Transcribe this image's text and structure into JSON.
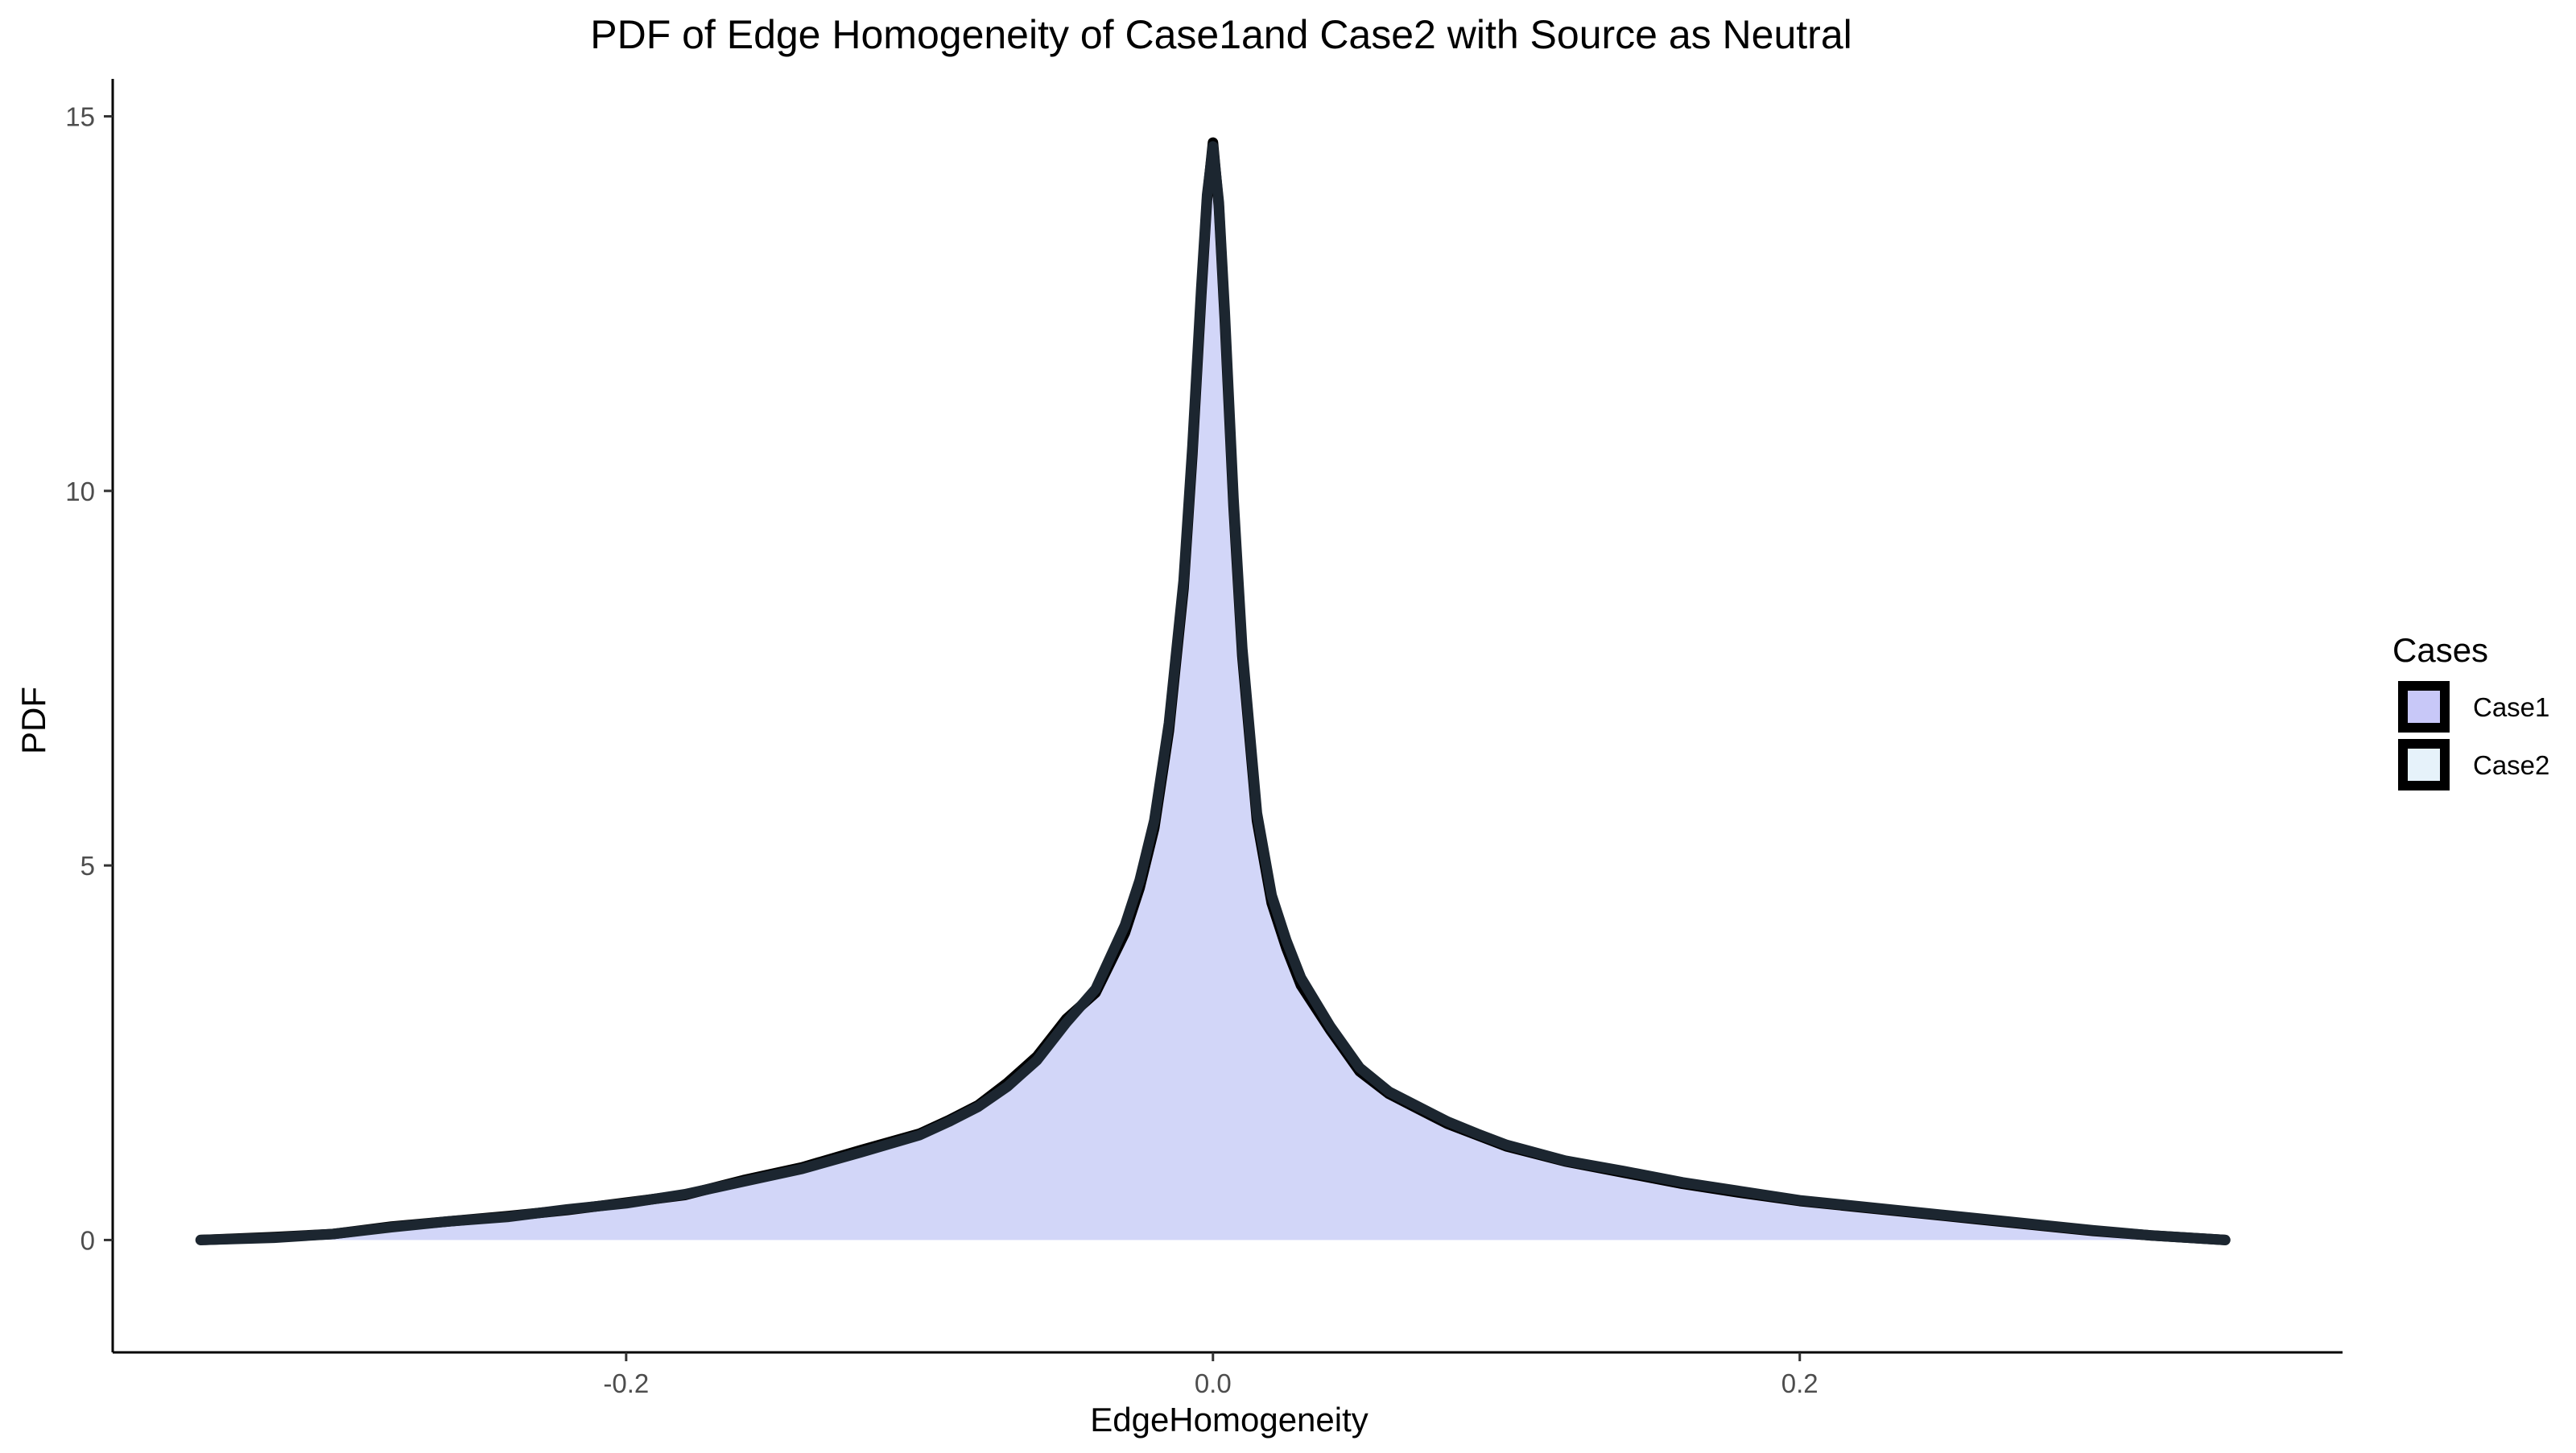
{
  "chart_data": {
    "type": "area",
    "title": "PDF of Edge Homogeneity of Case1and Case2 with Source as Neutral",
    "xlabel": "EdgeHomogeneity",
    "ylabel": "PDF",
    "xlim": [
      -0.375,
      0.385
    ],
    "ylim": [
      -1.5,
      15.5
    ],
    "xticks": [
      {
        "value": -0.2,
        "label": "-0.2"
      },
      {
        "value": 0.0,
        "label": "0.0"
      },
      {
        "value": 0.2,
        "label": "0.2"
      }
    ],
    "yticks": [
      {
        "value": 0,
        "label": "0"
      },
      {
        "value": 5,
        "label": "5"
      },
      {
        "value": 10,
        "label": "10"
      },
      {
        "value": 15,
        "label": "15"
      }
    ],
    "grid": false,
    "legend": {
      "title": "Cases",
      "placement": "right",
      "items": [
        {
          "label": "Case1",
          "color": "#c8c8f8"
        },
        {
          "label": "Case2",
          "color": "#e6f2fa"
        }
      ]
    },
    "series": [
      {
        "name": "Case1",
        "fill": "#c8c8f8",
        "x": [
          -0.345,
          -0.32,
          -0.3,
          -0.28,
          -0.26,
          -0.24,
          -0.22,
          -0.2,
          -0.18,
          -0.16,
          -0.14,
          -0.12,
          -0.1,
          -0.09,
          -0.08,
          -0.07,
          -0.06,
          -0.05,
          -0.04,
          -0.03,
          -0.025,
          -0.02,
          -0.015,
          -0.01,
          -0.007,
          -0.004,
          -0.002,
          0.0,
          0.002,
          0.004,
          0.007,
          0.01,
          0.015,
          0.02,
          0.025,
          0.03,
          0.04,
          0.05,
          0.06,
          0.07,
          0.08,
          0.09,
          0.1,
          0.12,
          0.14,
          0.16,
          0.18,
          0.2,
          0.22,
          0.24,
          0.26,
          0.28,
          0.3,
          0.32,
          0.345
        ],
        "y": [
          0.0,
          0.04,
          0.08,
          0.18,
          0.25,
          0.32,
          0.4,
          0.5,
          0.6,
          0.8,
          0.97,
          1.2,
          1.42,
          1.6,
          1.8,
          2.1,
          2.45,
          2.95,
          3.3,
          4.1,
          4.7,
          5.5,
          6.8,
          8.7,
          10.5,
          12.6,
          13.9,
          14.65,
          13.8,
          12.3,
          9.8,
          7.8,
          5.6,
          4.5,
          3.9,
          3.4,
          2.8,
          2.25,
          1.95,
          1.75,
          1.55,
          1.4,
          1.25,
          1.05,
          0.9,
          0.75,
          0.63,
          0.52,
          0.44,
          0.36,
          0.28,
          0.2,
          0.12,
          0.06,
          0.0
        ]
      },
      {
        "name": "Case2",
        "fill": "#e6f2fa",
        "x": [
          -0.345,
          -0.32,
          -0.3,
          -0.28,
          -0.26,
          -0.24,
          -0.22,
          -0.2,
          -0.18,
          -0.16,
          -0.14,
          -0.12,
          -0.1,
          -0.09,
          -0.08,
          -0.07,
          -0.06,
          -0.05,
          -0.04,
          -0.03,
          -0.025,
          -0.02,
          -0.015,
          -0.01,
          -0.007,
          -0.004,
          -0.002,
          0.0,
          0.002,
          0.004,
          0.007,
          0.01,
          0.015,
          0.02,
          0.025,
          0.03,
          0.04,
          0.05,
          0.06,
          0.07,
          0.08,
          0.09,
          0.1,
          0.12,
          0.14,
          0.16,
          0.18,
          0.2,
          0.22,
          0.24,
          0.26,
          0.28,
          0.3,
          0.32,
          0.345
        ],
        "y": [
          0.0,
          0.03,
          0.08,
          0.17,
          0.25,
          0.31,
          0.41,
          0.49,
          0.61,
          0.78,
          0.95,
          1.17,
          1.4,
          1.58,
          1.78,
          2.05,
          2.4,
          2.9,
          3.35,
          4.2,
          4.8,
          5.6,
          6.9,
          8.8,
          10.6,
          12.7,
          13.95,
          14.6,
          13.85,
          12.4,
          9.9,
          7.9,
          5.7,
          4.6,
          4.0,
          3.5,
          2.85,
          2.3,
          1.98,
          1.78,
          1.58,
          1.42,
          1.27,
          1.06,
          0.92,
          0.77,
          0.65,
          0.53,
          0.45,
          0.37,
          0.29,
          0.21,
          0.13,
          0.06,
          0.0
        ]
      }
    ]
  }
}
